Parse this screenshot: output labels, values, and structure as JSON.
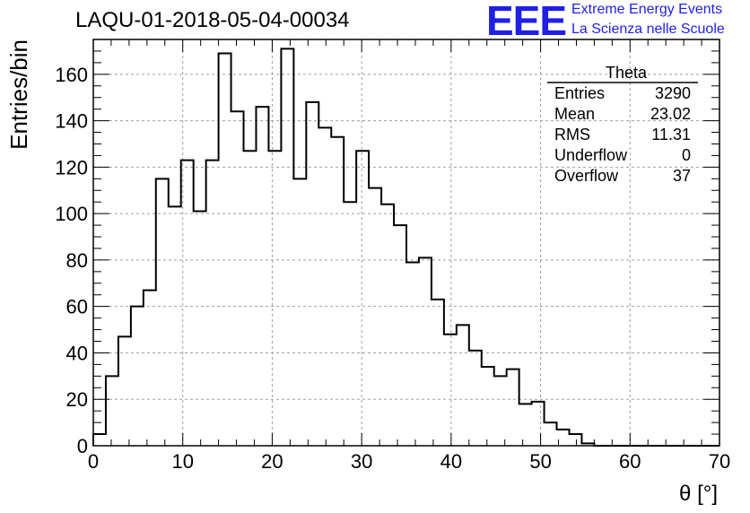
{
  "chart_data": {
    "type": "histogram",
    "title": "LAQU-01-2018-05-04-00034",
    "xlabel": "θ [°]",
    "ylabel": "Entries/bin",
    "xlim": [
      0,
      70
    ],
    "ylim": [
      0,
      175
    ],
    "bin_width": 1.4,
    "x_ticks": [
      0,
      10,
      20,
      30,
      40,
      50,
      60,
      70
    ],
    "y_ticks": [
      0,
      20,
      40,
      60,
      80,
      100,
      120,
      140,
      160
    ],
    "grid": true,
    "legend": "none",
    "bin_edges": [
      0,
      1.4,
      2.8,
      4.2,
      5.6,
      7.0,
      8.4,
      9.8,
      11.2,
      12.6,
      14.0,
      15.4,
      16.8,
      18.2,
      19.6,
      21.0,
      22.4,
      23.8,
      25.2,
      26.6,
      28.0,
      29.4,
      30.8,
      32.2,
      33.6,
      35.0,
      36.4,
      37.8,
      39.2,
      40.6,
      42.0,
      43.4,
      44.8,
      46.2,
      47.6,
      49.0,
      50.4,
      51.8,
      53.2,
      54.6,
      56.0,
      57.4,
      58.8,
      60.2,
      61.6,
      63.0,
      64.4,
      65.8,
      67.2,
      68.6,
      70.0
    ],
    "values": [
      5,
      30,
      47,
      60,
      67,
      115,
      103,
      123,
      101,
      123,
      169,
      144,
      127,
      146,
      127,
      171,
      115,
      148,
      137,
      133,
      105,
      127,
      111,
      104,
      95,
      79,
      81,
      63,
      48,
      52,
      41,
      34,
      30,
      33,
      18,
      19,
      10,
      7,
      5,
      1,
      0,
      0,
      0,
      0,
      0,
      0,
      0,
      0,
      0,
      0
    ],
    "line_color": "#000000",
    "stats_box": {
      "title": "Theta",
      "rows": [
        {
          "label": "Entries",
          "value": "3290"
        },
        {
          "label": "Mean",
          "value": "23.02"
        },
        {
          "label": "RMS",
          "value": "11.31"
        },
        {
          "label": "Underflow",
          "value": "0"
        },
        {
          "label": "Overflow",
          "value": "37"
        }
      ]
    }
  },
  "logo": {
    "mark": "EEE",
    "line1": "Extreme Energy Events",
    "line2": "La Scienza nelle Scuole",
    "color": "#1f1fe8"
  }
}
